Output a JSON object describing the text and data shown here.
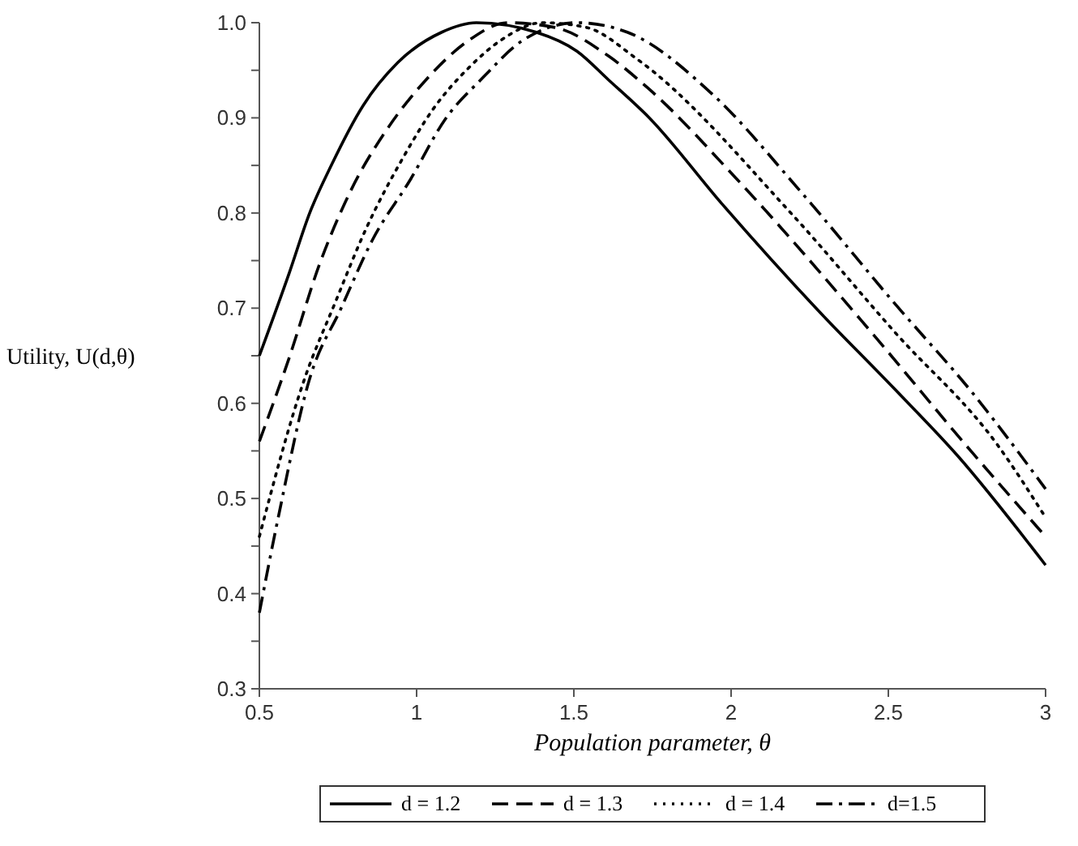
{
  "chart_data": {
    "type": "line",
    "xlabel": "Population parameter, θ",
    "ylabel": "Utility, U(d,θ)",
    "xlim": [
      0.5,
      3
    ],
    "ylim": [
      0.3,
      1
    ],
    "xticks": [
      0.5,
      1,
      1.5,
      2,
      2.5,
      3
    ],
    "yticks": [
      {
        "value": 0.3,
        "label": "0.3"
      },
      {
        "value": 0.35,
        "label": null
      },
      {
        "value": 0.4,
        "label": "0.4"
      },
      {
        "value": 0.45,
        "label": null
      },
      {
        "value": 0.5,
        "label": "0.5"
      },
      {
        "value": 0.55,
        "label": null
      },
      {
        "value": 0.6,
        "label": "0.6"
      },
      {
        "value": 0.65,
        "label": null
      },
      {
        "value": 0.7,
        "label": "0.7"
      },
      {
        "value": 0.75,
        "label": null
      },
      {
        "value": 0.8,
        "label": "0.8"
      },
      {
        "value": 0.85,
        "label": null
      },
      {
        "value": 0.9,
        "label": "0.9"
      },
      {
        "value": 0.95,
        "label": null
      },
      {
        "value": 1,
        "label": "1.0"
      }
    ],
    "grid": false,
    "legend": "bottom",
    "series": [
      {
        "name": "d = 1.2",
        "color": "#000000",
        "line_style": "solid",
        "x": [
          0.5,
          0.595,
          0.66,
          0.73,
          0.83,
          0.94,
          1.08,
          1.19,
          1.38,
          1.51,
          1.61,
          1.74,
          1.97,
          2.27,
          2.52,
          2.72,
          3
        ],
        "values": [
          0.65,
          0.737,
          0.8,
          0.851,
          0.913,
          0.958,
          0.99,
          1,
          0.99,
          0.97,
          0.94,
          0.9,
          0.81,
          0.7,
          0.615,
          0.545,
          0.43
        ]
      },
      {
        "name": "d = 1.3",
        "color": "#000000",
        "line_style": "dashed",
        "x": [
          0.5,
          0.595,
          0.69,
          0.79,
          0.91,
          1.03,
          1.16,
          1.29,
          1.44,
          1.61,
          1.74,
          2.02,
          2.44,
          2.77,
          3
        ],
        "values": [
          0.56,
          0.648,
          0.745,
          0.823,
          0.89,
          0.94,
          0.98,
          1,
          0.995,
          0.965,
          0.93,
          0.835,
          0.677,
          0.547,
          0.46
        ]
      },
      {
        "name": "d = 1.4",
        "color": "#000000",
        "line_style": "dotted",
        "x": [
          0.5,
          0.645,
          0.74,
          0.84,
          0.955,
          1.05,
          1.17,
          1.27,
          1.4,
          1.54,
          1.7,
          2.19,
          2.52,
          2.85,
          3
        ],
        "values": [
          0.46,
          0.627,
          0.705,
          0.784,
          0.857,
          0.908,
          0.954,
          0.982,
          1,
          0.995,
          0.962,
          0.8,
          0.675,
          0.555,
          0.48
        ]
      },
      {
        "name": "d=1.5",
        "color": "#000000",
        "line_style": "dashdot",
        "x": [
          0.5,
          0.56,
          0.66,
          0.76,
          0.86,
          0.98,
          1.09,
          1.21,
          1.34,
          1.51,
          1.67,
          1.94,
          2.22,
          2.52,
          2.77,
          3
        ],
        "values": [
          0.38,
          0.48,
          0.626,
          0.7,
          0.772,
          0.835,
          0.898,
          0.942,
          0.982,
          1,
          0.99,
          0.925,
          0.823,
          0.705,
          0.61,
          0.51
        ]
      }
    ]
  }
}
